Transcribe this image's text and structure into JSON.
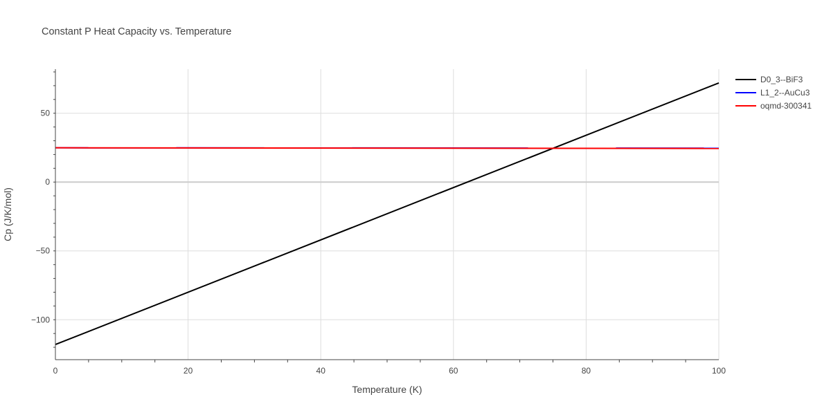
{
  "chart_data": {
    "type": "line",
    "title": "Constant P Heat Capacity vs. Temperature",
    "xlabel": "Temperature (K)",
    "ylabel": "Cp (J/K/mol)",
    "xlim": [
      0,
      100
    ],
    "ylim": [
      -129,
      82
    ],
    "x_ticks": [
      0,
      20,
      40,
      60,
      80,
      100
    ],
    "x_tick_labels": [
      "0",
      "20",
      "40",
      "60",
      "80",
      "100"
    ],
    "y_ticks": [
      -100,
      -50,
      0,
      50
    ],
    "y_tick_labels": [
      "−100",
      "−50",
      "0",
      "50"
    ],
    "grid": true,
    "legend_position": "top-right",
    "series": [
      {
        "name": "D0_3--BiF3",
        "color": "#000000",
        "x": [
          0,
          100
        ],
        "y": [
          -118,
          72
        ]
      },
      {
        "name": "L1_2--AuCu3",
        "color": "#0000ff",
        "x": [
          0,
          100
        ],
        "y": [
          24.9,
          24.6
        ]
      },
      {
        "name": "oqmd-300341",
        "color": "#ff0000",
        "x": [
          0,
          100
        ],
        "y": [
          24.9,
          24.4
        ]
      }
    ]
  }
}
